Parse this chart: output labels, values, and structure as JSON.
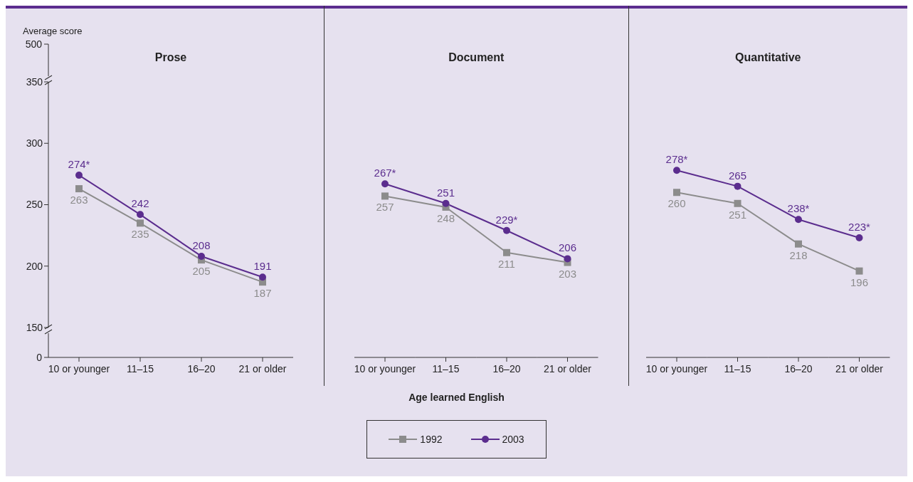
{
  "chart_data": [
    {
      "type": "line",
      "title": "Prose",
      "ylabel": "Average score",
      "legend": "bottom",
      "annotations": [
        "500",
        "0"
      ],
      "categories": [
        "10 or younger",
        "11–15",
        "16–20",
        "21 or older"
      ],
      "ylim": [
        150,
        350
      ],
      "yticks": [
        150,
        200,
        250,
        300,
        350
      ],
      "series": [
        {
          "name": "1992",
          "color": "#8c8c8c",
          "marker": "square",
          "values": [
            263,
            235,
            205,
            187
          ],
          "value_labels": [
            "263",
            "235",
            "205",
            "187"
          ]
        },
        {
          "name": "2003",
          "color": "#5b2d8e",
          "marker": "circle",
          "values": [
            274,
            242,
            208,
            191
          ],
          "value_labels": [
            "274*",
            "242",
            "208",
            "191"
          ]
        }
      ]
    },
    {
      "type": "line",
      "title": "Document",
      "xlabel": "Age learned English",
      "tick_labels": "x",
      "categories": [
        "10 or younger",
        "11–15",
        "16–20",
        "21 or older"
      ],
      "ylim": [
        150,
        350
      ],
      "yticks": [
        150,
        200,
        250,
        300,
        350
      ],
      "series": [
        {
          "name": "1992",
          "color": "#8c8c8c",
          "marker": "square",
          "values": [
            257,
            248,
            211,
            203
          ],
          "value_labels": [
            "257",
            "248",
            "211",
            "203"
          ]
        },
        {
          "name": "2003",
          "color": "#5b2d8e",
          "marker": "circle",
          "values": [
            267,
            251,
            229,
            206
          ],
          "value_labels": [
            "267*",
            "251",
            "229*",
            "206"
          ]
        }
      ]
    },
    {
      "type": "line",
      "title": "Quantitative",
      "tick_labels": "x",
      "categories": [
        "10 or younger",
        "11–15",
        "16–20",
        "21 or older"
      ],
      "ylim": [
        150,
        350
      ],
      "yticks": [
        150,
        200,
        250,
        300,
        350
      ],
      "series": [
        {
          "name": "1992",
          "color": "#8c8c8c",
          "marker": "square",
          "values": [
            260,
            251,
            218,
            196
          ],
          "value_labels": [
            "260",
            "251",
            "218",
            "196"
          ]
        },
        {
          "name": "2003",
          "color": "#5b2d8e",
          "marker": "circle",
          "values": [
            278,
            265,
            238,
            223
          ],
          "value_labels": [
            "278*",
            "265",
            "238*",
            "223*"
          ]
        }
      ]
    }
  ]
}
